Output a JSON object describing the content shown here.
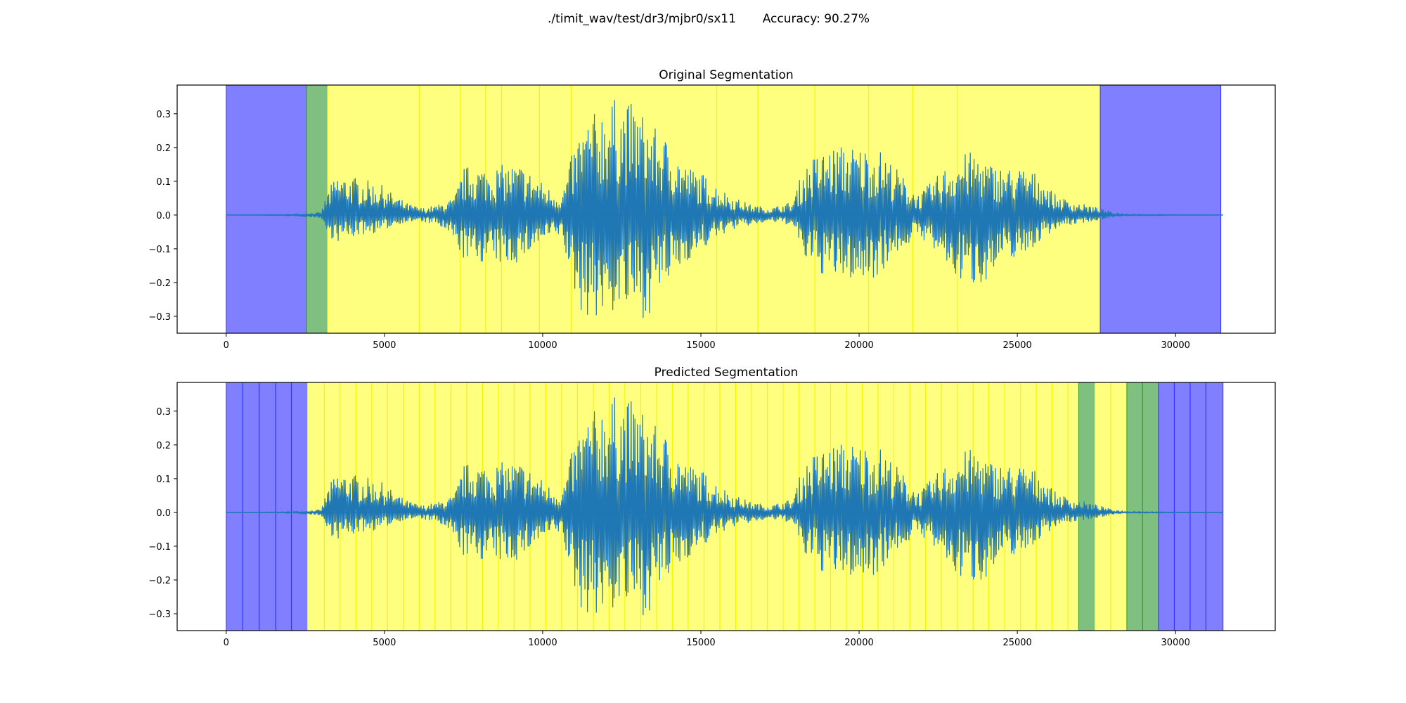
{
  "figure": {
    "title": "./timit_wav/test/dr3/mjbr0/sx11       Accuracy: 90.27%"
  },
  "colors": {
    "waveform": "#1f77b4",
    "silence": "#7f7fff",
    "transition": "#7fbf7f",
    "speech": "#ffff7f",
    "silence_line": "#3333ff",
    "transition_line": "#339933",
    "speech_line": "#f5f500"
  },
  "chart_data": [
    {
      "type": "line",
      "title": "Original Segmentation",
      "xlabel": "",
      "ylabel": "",
      "xlim": [
        -1550,
        33150
      ],
      "ylim": [
        -0.35,
        0.385
      ],
      "xticks": [
        0,
        5000,
        10000,
        15000,
        20000,
        25000,
        30000
      ],
      "yticks": [
        -0.3,
        -0.2,
        -0.1,
        0.0,
        0.1,
        0.2,
        0.3
      ],
      "grid": false,
      "waveform_envelope": {
        "x": [
          0,
          1800,
          2500,
          3000,
          3200,
          3500,
          4200,
          4900,
          5300,
          5700,
          6200,
          6700,
          7200,
          7500,
          7800,
          8300,
          8800,
          9300,
          9700,
          10200,
          10600,
          10900,
          11200,
          11700,
          12100,
          12400,
          12900,
          13300,
          13600,
          14000,
          14500,
          15100,
          15600,
          16100,
          16600,
          17200,
          17900,
          18200,
          18500,
          19100,
          19600,
          20100,
          20600,
          21100,
          21500,
          21900,
          22300,
          22800,
          23200,
          23700,
          24200,
          24700,
          25200,
          25700,
          26200,
          26700,
          27200,
          27600,
          28000,
          28500,
          29500,
          31500
        ],
        "upper": [
          0.0,
          0.002,
          0.005,
          0.008,
          0.07,
          0.12,
          0.11,
          0.09,
          0.06,
          0.035,
          0.02,
          0.03,
          0.05,
          0.14,
          0.15,
          0.14,
          0.15,
          0.15,
          0.12,
          0.08,
          0.06,
          0.17,
          0.26,
          0.31,
          0.35,
          0.34,
          0.33,
          0.29,
          0.25,
          0.22,
          0.15,
          0.12,
          0.08,
          0.05,
          0.03,
          0.02,
          0.04,
          0.13,
          0.17,
          0.2,
          0.21,
          0.2,
          0.2,
          0.15,
          0.1,
          0.06,
          0.1,
          0.15,
          0.18,
          0.19,
          0.15,
          0.14,
          0.14,
          0.12,
          0.06,
          0.04,
          0.03,
          0.02,
          0.008,
          0.004,
          0.002,
          0.0
        ],
        "lower": [
          0.0,
          -0.002,
          -0.005,
          -0.008,
          -0.06,
          -0.08,
          -0.06,
          -0.05,
          -0.03,
          -0.02,
          -0.02,
          -0.03,
          -0.08,
          -0.13,
          -0.14,
          -0.14,
          -0.15,
          -0.14,
          -0.1,
          -0.07,
          -0.06,
          -0.2,
          -0.29,
          -0.31,
          -0.3,
          -0.28,
          -0.29,
          -0.31,
          -0.24,
          -0.2,
          -0.14,
          -0.1,
          -0.06,
          -0.04,
          -0.03,
          -0.02,
          -0.03,
          -0.12,
          -0.16,
          -0.19,
          -0.19,
          -0.2,
          -0.18,
          -0.12,
          -0.09,
          -0.06,
          -0.1,
          -0.16,
          -0.2,
          -0.21,
          -0.18,
          -0.13,
          -0.12,
          -0.08,
          -0.04,
          -0.03,
          -0.02,
          -0.015,
          -0.006,
          -0.003,
          -0.002,
          0.0
        ]
      },
      "segments": [
        {
          "start": 0,
          "end": 2540,
          "class": "silence"
        },
        {
          "start": 2540,
          "end": 3200,
          "class": "transition"
        },
        {
          "start": 3200,
          "end": 27620,
          "class": "speech"
        },
        {
          "start": 27620,
          "end": 31430,
          "class": "silence"
        }
      ],
      "boundaries": [
        6100,
        7400,
        8200,
        8700,
        9900,
        10900,
        15500,
        16800,
        18600,
        20300,
        21700,
        23100
      ]
    },
    {
      "type": "line",
      "title": "Predicted Segmentation",
      "xlabel": "",
      "ylabel": "",
      "xlim": [
        -1550,
        33150
      ],
      "ylim": [
        -0.35,
        0.385
      ],
      "xticks": [
        0,
        5000,
        10000,
        15000,
        20000,
        25000,
        30000
      ],
      "yticks": [
        -0.3,
        -0.2,
        -0.1,
        0.0,
        0.1,
        0.2,
        0.3
      ],
      "grid": false,
      "waveform_envelope": {
        "x": [
          0,
          1800,
          2500,
          3000,
          3200,
          3500,
          4200,
          4900,
          5300,
          5700,
          6200,
          6700,
          7200,
          7500,
          7800,
          8300,
          8800,
          9300,
          9700,
          10200,
          10600,
          10900,
          11200,
          11700,
          12100,
          12400,
          12900,
          13300,
          13600,
          14000,
          14500,
          15100,
          15600,
          16100,
          16600,
          17200,
          17900,
          18200,
          18500,
          19100,
          19600,
          20100,
          20600,
          21100,
          21500,
          21900,
          22300,
          22800,
          23200,
          23700,
          24200,
          24700,
          25200,
          25700,
          26200,
          26700,
          27200,
          27600,
          28000,
          28500,
          29500,
          31500
        ],
        "upper": [
          0.0,
          0.002,
          0.005,
          0.008,
          0.07,
          0.12,
          0.11,
          0.09,
          0.06,
          0.035,
          0.02,
          0.03,
          0.05,
          0.14,
          0.15,
          0.14,
          0.15,
          0.15,
          0.12,
          0.08,
          0.06,
          0.17,
          0.26,
          0.31,
          0.35,
          0.34,
          0.33,
          0.29,
          0.25,
          0.22,
          0.15,
          0.12,
          0.08,
          0.05,
          0.03,
          0.02,
          0.04,
          0.13,
          0.17,
          0.2,
          0.21,
          0.2,
          0.2,
          0.15,
          0.1,
          0.06,
          0.1,
          0.15,
          0.18,
          0.19,
          0.15,
          0.14,
          0.14,
          0.12,
          0.06,
          0.04,
          0.03,
          0.02,
          0.008,
          0.004,
          0.002,
          0.0
        ],
        "lower": [
          0.0,
          -0.002,
          -0.005,
          -0.008,
          -0.06,
          -0.08,
          -0.06,
          -0.05,
          -0.03,
          -0.02,
          -0.02,
          -0.03,
          -0.08,
          -0.13,
          -0.14,
          -0.14,
          -0.15,
          -0.14,
          -0.1,
          -0.07,
          -0.06,
          -0.2,
          -0.29,
          -0.31,
          -0.3,
          -0.28,
          -0.29,
          -0.31,
          -0.24,
          -0.2,
          -0.14,
          -0.1,
          -0.06,
          -0.04,
          -0.03,
          -0.02,
          -0.03,
          -0.12,
          -0.16,
          -0.19,
          -0.19,
          -0.2,
          -0.18,
          -0.12,
          -0.09,
          -0.06,
          -0.1,
          -0.16,
          -0.2,
          -0.21,
          -0.18,
          -0.13,
          -0.12,
          -0.08,
          -0.04,
          -0.03,
          -0.02,
          -0.015,
          -0.006,
          -0.003,
          -0.002,
          0.0
        ]
      },
      "segments": [
        {
          "start": 0,
          "end": 2570,
          "class": "silence"
        },
        {
          "start": 2570,
          "end": 26940,
          "class": "speech"
        },
        {
          "start": 26940,
          "end": 27450,
          "class": "transition"
        },
        {
          "start": 27450,
          "end": 28460,
          "class": "speech"
        },
        {
          "start": 28460,
          "end": 29460,
          "class": "transition"
        },
        {
          "start": 29460,
          "end": 31500,
          "class": "silence"
        }
      ],
      "boundaries": [
        520,
        1040,
        1560,
        2060,
        3100,
        3600,
        4100,
        4600,
        5100,
        5600,
        6100,
        6600,
        7100,
        7600,
        8100,
        8600,
        9100,
        9600,
        10100,
        10600,
        11100,
        11600,
        12100,
        12600,
        13100,
        13600,
        14100,
        14600,
        15100,
        15600,
        16100,
        16600,
        17100,
        17600,
        18100,
        18600,
        19100,
        19600,
        20100,
        20600,
        21100,
        21600,
        22100,
        22600,
        23100,
        23600,
        24100,
        24600,
        25100,
        25600,
        26100,
        26600,
        27950,
        28960,
        29960,
        30460,
        30960
      ]
    }
  ]
}
